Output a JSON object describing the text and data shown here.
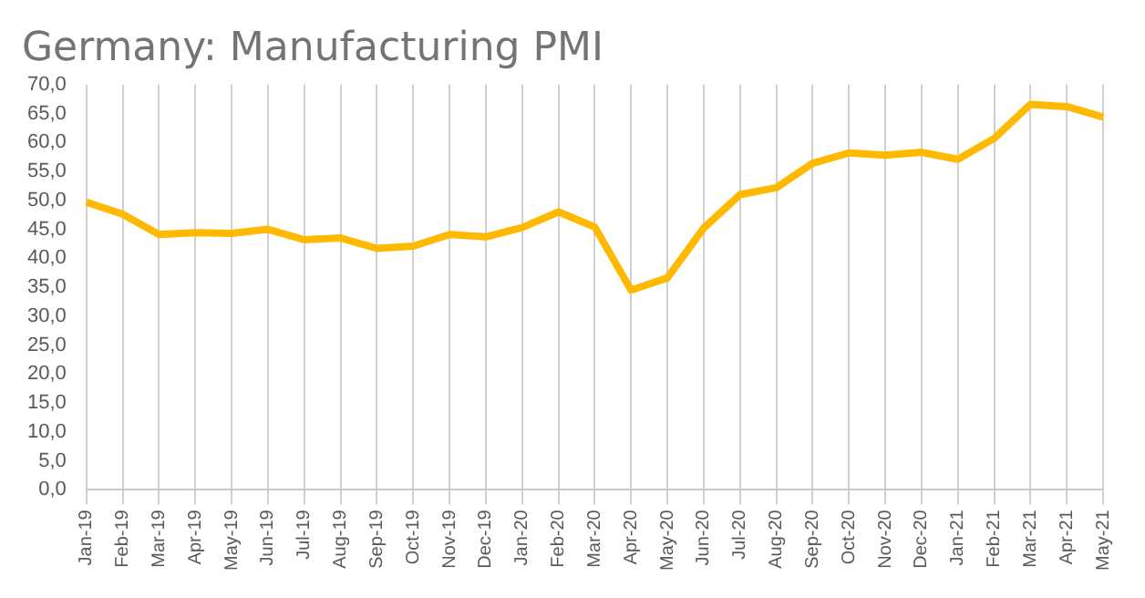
{
  "chart_data": {
    "type": "line",
    "title": "Germany: Manufacturing PMI",
    "categories": [
      "Jan-19",
      "Feb-19",
      "Mar-19",
      "Apr-19",
      "May-19",
      "Jun-19",
      "Jul-19",
      "Aug-19",
      "Sep-19",
      "Oct-19",
      "Nov-19",
      "Dec-19",
      "Jan-20",
      "Feb-20",
      "Mar-20",
      "Apr-20",
      "May-20",
      "Jun-20",
      "Jul-20",
      "Aug-20",
      "Sep-20",
      "Oct-20",
      "Nov-20",
      "Dec-20",
      "Jan-21",
      "Feb-21",
      "Mar-21",
      "Apr-21",
      "May-21"
    ],
    "series": [
      {
        "color": "#ffb900",
        "values": [
          49.7,
          47.6,
          44.1,
          44.4,
          44.3,
          45.0,
          43.2,
          43.5,
          41.7,
          42.1,
          44.1,
          43.7,
          45.3,
          48.0,
          45.4,
          34.5,
          36.6,
          45.2,
          51.0,
          52.2,
          56.4,
          58.2,
          57.8,
          58.3,
          57.1,
          60.7,
          66.6,
          66.2,
          64.4
        ]
      }
    ],
    "ylim": [
      0,
      70
    ],
    "yticks": [
      {
        "value": 0,
        "label": "0,0"
      },
      {
        "value": 5,
        "label": "5,0"
      },
      {
        "value": 10,
        "label": "10,0"
      },
      {
        "value": 15,
        "label": "15,0"
      },
      {
        "value": 20,
        "label": "20,0"
      },
      {
        "value": 25,
        "label": "25,0"
      },
      {
        "value": 30,
        "label": "30,0"
      },
      {
        "value": 35,
        "label": "35,0"
      },
      {
        "value": 40,
        "label": "40,0"
      },
      {
        "value": 45,
        "label": "45,0"
      },
      {
        "value": 50,
        "label": "50,0"
      },
      {
        "value": 55,
        "label": "55,0"
      },
      {
        "value": 60,
        "label": "60,0"
      },
      {
        "value": 65,
        "label": "65,0"
      },
      {
        "value": 70,
        "label": "70,0"
      }
    ],
    "grid": "x",
    "marker": "none",
    "legend": false
  }
}
